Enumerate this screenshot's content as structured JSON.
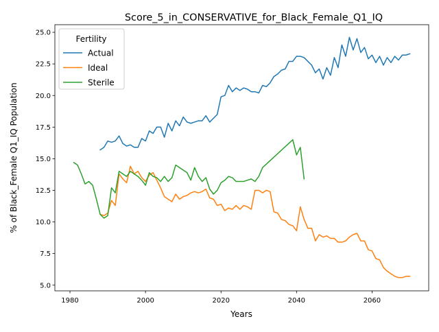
{
  "chart_data": {
    "type": "line",
    "title": "Score_5_in_CONSERVATIVE_for_Black_Female_Q1_IQ",
    "xlabel": "Years",
    "ylabel": "% of Black_Female Q1_IQ Population",
    "xlim": [
      1976,
      2075
    ],
    "ylim": [
      4.55,
      25.6
    ],
    "xticks": [
      1980,
      2000,
      2020,
      2040,
      2060
    ],
    "xtick_labels": [
      "1980",
      "2000",
      "2020",
      "2040",
      "2060"
    ],
    "yticks": [
      5.0,
      7.5,
      10.0,
      12.5,
      15.0,
      17.5,
      20.0,
      22.5,
      25.0
    ],
    "ytick_labels": [
      "5.0",
      "7.5",
      "10.0",
      "12.5",
      "15.0",
      "17.5",
      "20.0",
      "22.5",
      "25.0"
    ],
    "grid": false,
    "legend": {
      "title": "Fertility",
      "placement": "top-left"
    },
    "series": [
      {
        "name": "Actual",
        "color": "#1f77b4",
        "x": [
          1988,
          1989,
          1990,
          1991,
          1992,
          1993,
          1994,
          1995,
          1996,
          1997,
          1998,
          1999,
          2000,
          2001,
          2002,
          2003,
          2004,
          2005,
          2006,
          2007,
          2008,
          2009,
          2010,
          2011,
          2012,
          2013,
          2014,
          2015,
          2016,
          2017,
          2018,
          2019,
          2020,
          2021,
          2022,
          2023,
          2024,
          2025,
          2026,
          2027,
          2028,
          2029,
          2030,
          2031,
          2032,
          2033,
          2034,
          2035,
          2036,
          2037,
          2038,
          2039,
          2040,
          2041,
          2042,
          2043,
          2044,
          2045,
          2046,
          2047,
          2048,
          2049,
          2050,
          2051,
          2052,
          2053,
          2054,
          2055,
          2056,
          2057,
          2058,
          2059,
          2060,
          2061,
          2062,
          2063,
          2064,
          2065,
          2066,
          2067,
          2068,
          2069,
          2070
        ],
        "y": [
          15.7,
          15.9,
          16.4,
          16.3,
          16.4,
          16.8,
          16.2,
          16.0,
          16.1,
          15.9,
          15.9,
          16.6,
          16.4,
          17.2,
          17.0,
          17.5,
          17.5,
          16.7,
          17.8,
          17.2,
          18.0,
          17.6,
          18.3,
          17.9,
          17.8,
          17.9,
          18.0,
          18.0,
          18.4,
          17.9,
          18.2,
          18.5,
          19.9,
          20.0,
          20.8,
          20.3,
          20.6,
          20.4,
          20.6,
          20.5,
          20.3,
          20.3,
          20.2,
          20.8,
          20.7,
          21.0,
          21.5,
          21.7,
          22.0,
          22.1,
          22.7,
          22.7,
          23.1,
          23.1,
          23.0,
          22.7,
          22.4,
          21.8,
          22.1,
          21.3,
          22.2,
          21.6,
          23.0,
          22.2,
          24.0,
          23.1,
          24.6,
          23.6,
          24.5,
          23.4,
          23.8,
          22.9,
          23.2,
          22.6,
          23.1,
          22.4,
          23.0,
          22.6,
          23.1,
          22.8,
          23.2,
          23.2,
          23.3
        ]
      },
      {
        "name": "Ideal",
        "color": "#ff7f0e",
        "x": [
          1988,
          1989,
          1990,
          1991,
          1992,
          1993,
          1994,
          1995,
          1996,
          1997,
          1998,
          1999,
          2000,
          2001,
          2002,
          2003,
          2004,
          2005,
          2006,
          2007,
          2008,
          2009,
          2010,
          2011,
          2012,
          2013,
          2014,
          2015,
          2016,
          2017,
          2018,
          2019,
          2020,
          2021,
          2022,
          2023,
          2024,
          2025,
          2026,
          2027,
          2028,
          2029,
          2030,
          2031,
          2032,
          2033,
          2034,
          2035,
          2036,
          2037,
          2038,
          2039,
          2040,
          2041,
          2042,
          2043,
          2044,
          2045,
          2046,
          2047,
          2048,
          2049,
          2050,
          2051,
          2052,
          2053,
          2054,
          2055,
          2056,
          2057,
          2058,
          2059,
          2060,
          2061,
          2062,
          2063,
          2064,
          2065,
          2066,
          2067,
          2068,
          2069,
          2070
        ],
        "y": [
          10.6,
          10.5,
          10.7,
          11.7,
          11.3,
          13.8,
          13.4,
          13.1,
          14.4,
          13.8,
          14.0,
          13.5,
          13.2,
          13.7,
          13.9,
          13.3,
          12.7,
          12.0,
          11.8,
          11.6,
          12.2,
          11.8,
          12.0,
          12.1,
          12.3,
          12.4,
          12.3,
          12.4,
          12.6,
          11.9,
          11.8,
          11.3,
          11.4,
          10.9,
          11.1,
          11.0,
          11.3,
          11.0,
          11.3,
          11.2,
          11.0,
          12.5,
          12.5,
          12.3,
          12.5,
          12.4,
          10.8,
          10.7,
          10.2,
          10.1,
          9.8,
          9.7,
          9.3,
          11.2,
          10.2,
          9.5,
          9.5,
          8.5,
          9.0,
          8.8,
          8.9,
          8.7,
          8.7,
          8.4,
          8.4,
          8.5,
          8.8,
          9.0,
          9.1,
          8.5,
          8.5,
          7.8,
          7.7,
          7.1,
          7.0,
          6.4,
          6.1,
          5.9,
          5.7,
          5.6,
          5.6,
          5.7,
          5.7
        ]
      },
      {
        "name": "Sterile",
        "color": "#2ca02c",
        "x": [
          1981,
          1982,
          1983,
          1984,
          1985,
          1986,
          1987,
          1988,
          1989,
          1990,
          1991,
          1992,
          1993,
          1994,
          1995,
          1996,
          1997,
          1998,
          1999,
          2000,
          2001,
          2002,
          2003,
          2004,
          2005,
          2006,
          2007,
          2008,
          2009,
          2010,
          2011,
          2012,
          2013,
          2014,
          2015,
          2016,
          2017,
          2018,
          2019,
          2020,
          2021,
          2022,
          2023,
          2024,
          2025,
          2026,
          2027,
          2028,
          2029,
          2030,
          2031,
          2039,
          2040,
          2041,
          2042
        ],
        "y": [
          14.7,
          14.5,
          13.8,
          13.0,
          13.2,
          12.9,
          11.8,
          10.6,
          10.3,
          10.5,
          12.7,
          12.3,
          14.0,
          13.8,
          13.6,
          14.0,
          13.8,
          13.6,
          13.3,
          12.9,
          13.9,
          13.6,
          13.5,
          13.2,
          13.6,
          13.2,
          13.5,
          14.5,
          14.3,
          14.1,
          13.9,
          13.3,
          14.3,
          13.6,
          13.2,
          13.5,
          12.6,
          12.2,
          12.5,
          13.1,
          13.3,
          13.6,
          13.5,
          13.2,
          13.2,
          13.2,
          13.3,
          13.4,
          13.2,
          13.6,
          14.3,
          16.5,
          15.3,
          15.9,
          13.4
        ]
      }
    ]
  }
}
